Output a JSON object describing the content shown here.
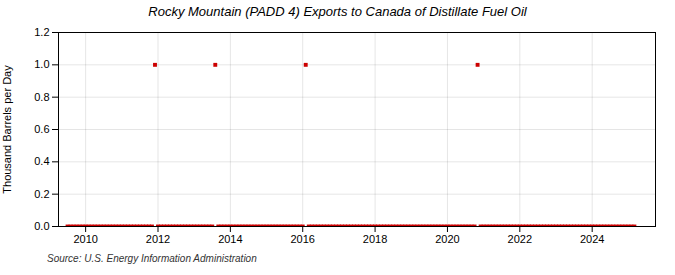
{
  "chart_data": {
    "type": "scatter",
    "title": "Rocky Mountain (PADD 4) Exports to Canada of Distillate Fuel Oil",
    "ylabel": "Thousand Barrels per Day",
    "source": "Source: U.S. Energy Information Administration",
    "color": "#cc0000",
    "marker": "square",
    "grid": true,
    "xlim": [
      2009.25,
      2025.75
    ],
    "xticks": [
      2010,
      2012,
      2014,
      2016,
      2018,
      2020,
      2022,
      2024
    ],
    "ylim": [
      0,
      1.2
    ],
    "yticks": [
      {
        "value": 0.0,
        "label": "0.0"
      },
      0.2,
      0.4,
      0.6,
      0.8,
      {
        "value": 1.0,
        "label": "1.0"
      },
      1.2
    ],
    "x": [
      2009.5,
      2009.583,
      2009.667,
      2009.75,
      2009.833,
      2009.917,
      2010.0,
      2010.083,
      2010.167,
      2010.25,
      2010.333,
      2010.417,
      2010.5,
      2010.583,
      2010.667,
      2010.75,
      2010.833,
      2010.917,
      2011.0,
      2011.083,
      2011.167,
      2011.25,
      2011.333,
      2011.417,
      2011.5,
      2011.583,
      2011.667,
      2011.75,
      2011.833,
      2011.917,
      2012.0,
      2012.083,
      2012.167,
      2012.25,
      2012.333,
      2012.417,
      2012.5,
      2012.583,
      2012.667,
      2012.75,
      2012.833,
      2012.917,
      2013.0,
      2013.083,
      2013.167,
      2013.25,
      2013.333,
      2013.417,
      2013.5,
      2013.583,
      2013.667,
      2013.75,
      2013.833,
      2013.917,
      2014.0,
      2014.083,
      2014.167,
      2014.25,
      2014.333,
      2014.417,
      2014.5,
      2014.583,
      2014.667,
      2014.75,
      2014.833,
      2014.917,
      2015.0,
      2015.083,
      2015.167,
      2015.25,
      2015.333,
      2015.417,
      2015.5,
      2015.583,
      2015.667,
      2015.75,
      2015.833,
      2015.917,
      2016.0,
      2016.083,
      2016.167,
      2016.25,
      2016.333,
      2016.417,
      2016.5,
      2016.583,
      2016.667,
      2016.75,
      2016.833,
      2016.917,
      2017.0,
      2017.083,
      2017.167,
      2017.25,
      2017.333,
      2017.417,
      2017.5,
      2017.583,
      2017.667,
      2017.75,
      2017.833,
      2017.917,
      2018.0,
      2018.083,
      2018.167,
      2018.25,
      2018.333,
      2018.417,
      2018.5,
      2018.583,
      2018.667,
      2018.75,
      2018.833,
      2018.917,
      2019.0,
      2019.083,
      2019.167,
      2019.25,
      2019.333,
      2019.417,
      2019.5,
      2019.583,
      2019.667,
      2019.75,
      2019.833,
      2019.917,
      2020.0,
      2020.083,
      2020.167,
      2020.25,
      2020.333,
      2020.417,
      2020.5,
      2020.583,
      2020.667,
      2020.75,
      2020.833,
      2020.917,
      2021.0,
      2021.083,
      2021.167,
      2021.25,
      2021.333,
      2021.417,
      2021.5,
      2021.583,
      2021.667,
      2021.75,
      2021.833,
      2021.917,
      2022.0,
      2022.083,
      2022.167,
      2022.25,
      2022.333,
      2022.417,
      2022.5,
      2022.583,
      2022.667,
      2022.75,
      2022.833,
      2022.917,
      2023.0,
      2023.083,
      2023.167,
      2023.25,
      2023.333,
      2023.417,
      2023.5,
      2023.583,
      2023.667,
      2023.75,
      2023.833,
      2023.917,
      2024.0,
      2024.083,
      2024.167,
      2024.25,
      2024.333,
      2024.417,
      2024.5,
      2024.583,
      2024.667,
      2024.75,
      2024.833,
      2024.917,
      2025.0,
      2025.083,
      2025.167
    ],
    "values": [
      0,
      0,
      0,
      0,
      0,
      0,
      0,
      0,
      0,
      0,
      0,
      0,
      0,
      0,
      0,
      0,
      0,
      0,
      0,
      0,
      0,
      0,
      0,
      0,
      0,
      0,
      0,
      0,
      0,
      1.0,
      0,
      0,
      0,
      0,
      0,
      0,
      0,
      0,
      0,
      0,
      0,
      0,
      0,
      0,
      0,
      0,
      0,
      0,
      0,
      1.0,
      0,
      0,
      0,
      0,
      0,
      0,
      0,
      0,
      0,
      0,
      0,
      0,
      0,
      0,
      0,
      0,
      0,
      0,
      0,
      0,
      0,
      0,
      0,
      0,
      0,
      0,
      0,
      0,
      0,
      1.0,
      0,
      0,
      0,
      0,
      0,
      0,
      0,
      0,
      0,
      0,
      0,
      0,
      0,
      0,
      0,
      0,
      0,
      0,
      0,
      0,
      0,
      0,
      0,
      0,
      0,
      0,
      0,
      0,
      0,
      0,
      0,
      0,
      0,
      0,
      0,
      0,
      0,
      0,
      0,
      0,
      0,
      0,
      0,
      0,
      0,
      0,
      0,
      0,
      0,
      0,
      0,
      0,
      0,
      0,
      0,
      0,
      1.0,
      0,
      0,
      0,
      0,
      0,
      0,
      0,
      0,
      0,
      0,
      0,
      0,
      0,
      0,
      0,
      0,
      0,
      0,
      0,
      0,
      0,
      0,
      0,
      0,
      0,
      0,
      0,
      0,
      0,
      0,
      0,
      0,
      0,
      0,
      0,
      0,
      0,
      0,
      0,
      0,
      0,
      0,
      0,
      0,
      0,
      0,
      0,
      0,
      0,
      0,
      0,
      0
    ]
  }
}
